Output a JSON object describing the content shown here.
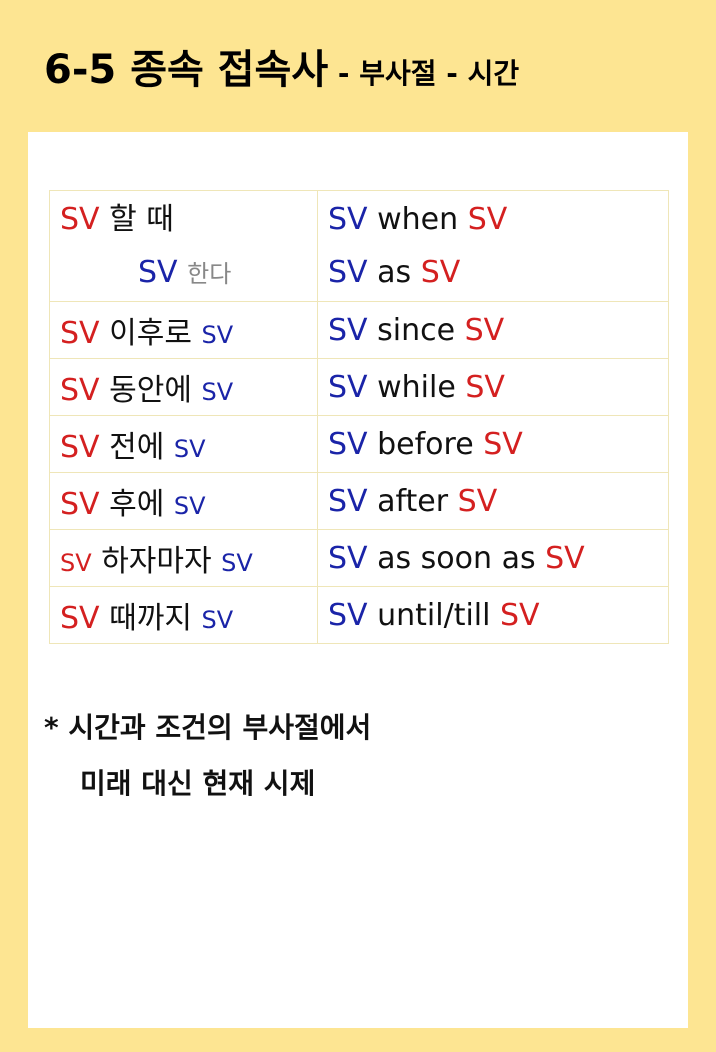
{
  "title": {
    "main": "6-5 종속 접속사",
    "sub": " - 부사절 - 시간"
  },
  "rows": [
    {
      "kr_subject": "SV",
      "kr_word": "할 때",
      "kr_object": "",
      "en_subject": "SV",
      "en_word": "when",
      "en_object": "SV"
    },
    {
      "kr_subject": "SV",
      "kr_word": "",
      "kr_object": "한다",
      "en_subject": "SV",
      "en_word": "as",
      "en_object": "SV"
    },
    {
      "kr_subject": "SV",
      "kr_word": "이후로",
      "kr_object": "SV",
      "en_subject": "SV",
      "en_word": "since",
      "en_object": "SV"
    },
    {
      "kr_subject": "SV",
      "kr_word": "동안에",
      "kr_object": "SV",
      "en_subject": "SV",
      "en_word": "while",
      "en_object": "SV"
    },
    {
      "kr_subject": "SV",
      "kr_word": "전에",
      "kr_object": "SV",
      "en_subject": "SV",
      "en_word": "before",
      "en_object": "SV"
    },
    {
      "kr_subject": "SV",
      "kr_word": "후에",
      "kr_object": "SV",
      "en_subject": "SV",
      "en_word": "after",
      "en_object": "SV"
    },
    {
      "kr_subject": "SV",
      "kr_word": "하자마자",
      "kr_object": "SV",
      "en_subject": "SV",
      "en_word": "as soon as",
      "en_object": "SV"
    },
    {
      "kr_subject": "SV",
      "kr_word": "때까지",
      "kr_object": "SV",
      "en_subject": "SV",
      "en_word": "until/till",
      "en_object": "SV"
    }
  ],
  "note": {
    "line1": "* 시간과 조건의 부사절에서",
    "line2": "미래 대신 현재 시제"
  },
  "colors": {
    "background": "#fde592",
    "subject": "#d42020",
    "object": "#1a24a8"
  }
}
